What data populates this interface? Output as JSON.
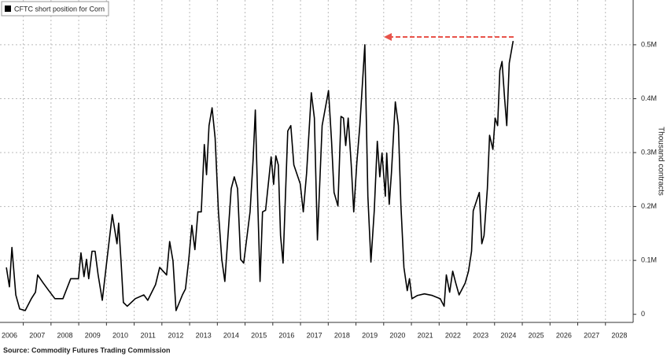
{
  "chart_data": {
    "type": "line",
    "legend": "top-left",
    "y_label": "Thousand contracts",
    "source": "Source: Commodity Futures Trading Commission",
    "grid": true,
    "xlim": [
      2006.16,
      2029
    ],
    "ylim": [
      -0.015,
      0.583
    ],
    "xticks": [
      2006,
      2007,
      2008,
      2009,
      2010,
      2011,
      2012,
      2013,
      2014,
      2015,
      2016,
      2017,
      2018,
      2019,
      2020,
      2021,
      2022,
      2023,
      2024,
      2025,
      2026,
      2027,
      2028
    ],
    "yticks": [
      0,
      {
        "value": 0.1,
        "label": "0.1M"
      },
      {
        "value": 0.2,
        "label": "0.2M"
      },
      {
        "value": 0.3,
        "label": "0.3M"
      },
      {
        "value": 0.4,
        "label": "0.4M"
      },
      {
        "value": 0.5,
        "label": "0.5M"
      }
    ],
    "x": [
      2006.39,
      2006.5,
      2006.59,
      2006.73,
      2006.87,
      2007.07,
      2007.29,
      2007.44,
      2007.52,
      2007.72,
      2007.92,
      2008.14,
      2008.43,
      2008.71,
      2008.99,
      2009.08,
      2009.19,
      2009.28,
      2009.36,
      2009.48,
      2009.59,
      2009.7,
      2009.85,
      2010.02,
      2010.21,
      2010.38,
      2010.44,
      2010.53,
      2010.61,
      2010.75,
      2011.04,
      2011.35,
      2011.49,
      2011.77,
      2011.92,
      2012.17,
      2012.28,
      2012.4,
      2012.51,
      2012.74,
      2012.85,
      2012.97,
      2013.08,
      2013.19,
      2013.3,
      2013.42,
      2013.53,
      2013.61,
      2013.7,
      2013.81,
      2013.92,
      2014.04,
      2014.16,
      2014.27,
      2014.5,
      2014.61,
      2014.73,
      2014.84,
      2014.95,
      2015.18,
      2015.29,
      2015.37,
      2015.46,
      2015.54,
      2015.63,
      2015.74,
      2015.94,
      2016.03,
      2016.11,
      2016.2,
      2016.28,
      2016.37,
      2016.54,
      2016.65,
      2016.76,
      2016.99,
      2017.1,
      2017.22,
      2017.39,
      2017.5,
      2017.61,
      2017.78,
      2018.01,
      2018.12,
      2018.21,
      2018.35,
      2018.46,
      2018.55,
      2018.63,
      2018.72,
      2018.83,
      2018.92,
      2019.03,
      2019.14,
      2019.32,
      2019.43,
      2019.54,
      2019.66,
      2019.77,
      2019.86,
      2019.94,
      2020.06,
      2020.11,
      2020.2,
      2020.28,
      2020.42,
      2020.53,
      2020.62,
      2020.73,
      2020.85,
      2020.93,
      2021.02,
      2021.22,
      2021.47,
      2021.75,
      2022.04,
      2022.18,
      2022.26,
      2022.38,
      2022.49,
      2022.6,
      2022.72,
      2022.94,
      2023.06,
      2023.17,
      2023.23,
      2023.45,
      2023.54,
      2023.62,
      2023.74,
      2023.82,
      2023.94,
      2024.02,
      2024.11,
      2024.19,
      2024.27,
      2024.36,
      2024.44,
      2024.53,
      2024.67
    ],
    "series": [
      {
        "name": "CFTC short position for Corn",
        "color": "#000000",
        "values": [
          0.087,
          0.051,
          0.124,
          0.036,
          0.01,
          0.007,
          0.029,
          0.041,
          0.073,
          0.058,
          0.044,
          0.029,
          0.029,
          0.066,
          0.066,
          0.114,
          0.07,
          0.102,
          0.066,
          0.117,
          0.117,
          0.073,
          0.026,
          0.102,
          0.185,
          0.131,
          0.169,
          0.095,
          0.022,
          0.015,
          0.029,
          0.036,
          0.026,
          0.055,
          0.087,
          0.073,
          0.135,
          0.099,
          0.007,
          0.036,
          0.047,
          0.102,
          0.165,
          0.12,
          0.19,
          0.19,
          0.315,
          0.259,
          0.35,
          0.383,
          0.327,
          0.19,
          0.102,
          0.061,
          0.233,
          0.255,
          0.233,
          0.102,
          0.095,
          0.19,
          0.287,
          0.379,
          0.204,
          0.061,
          0.19,
          0.193,
          0.292,
          0.241,
          0.294,
          0.277,
          0.146,
          0.095,
          0.34,
          0.35,
          0.277,
          0.242,
          0.19,
          0.262,
          0.411,
          0.364,
          0.138,
          0.35,
          0.415,
          0.321,
          0.226,
          0.201,
          0.367,
          0.364,
          0.313,
          0.364,
          0.277,
          0.19,
          0.28,
          0.35,
          0.5,
          0.219,
          0.097,
          0.192,
          0.321,
          0.255,
          0.299,
          0.219,
          0.299,
          0.204,
          0.262,
          0.394,
          0.35,
          0.204,
          0.087,
          0.044,
          0.066,
          0.029,
          0.035,
          0.038,
          0.035,
          0.029,
          0.015,
          0.073,
          0.041,
          0.08,
          0.058,
          0.036,
          0.058,
          0.08,
          0.117,
          0.192,
          0.226,
          0.131,
          0.146,
          0.233,
          0.332,
          0.306,
          0.364,
          0.35,
          0.452,
          0.469,
          0.402,
          0.35,
          0.466,
          0.507
        ]
      }
    ]
  }
}
